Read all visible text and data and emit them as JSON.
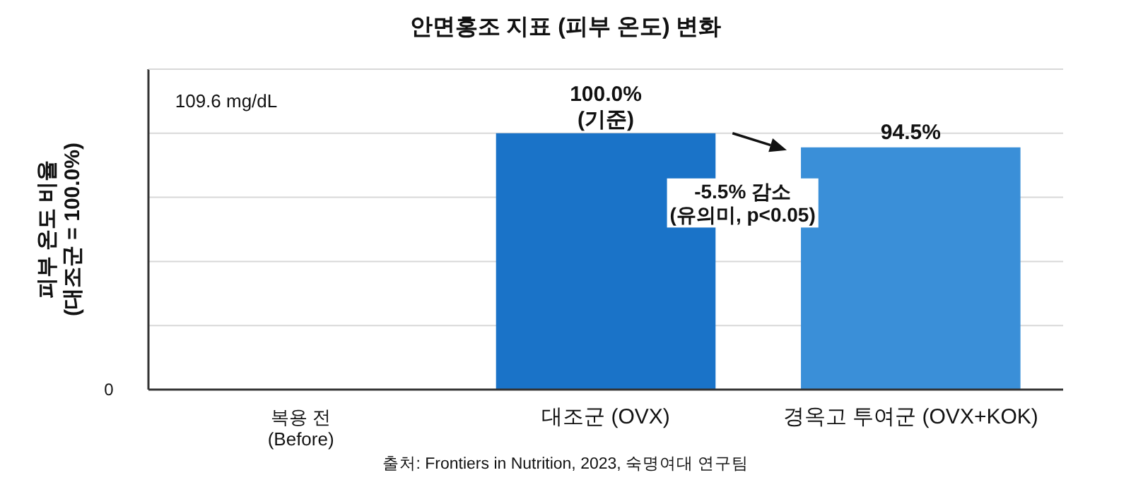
{
  "chart_data": {
    "type": "bar",
    "title": "안면홍조 지표 (피부 온도) 변화",
    "ylabel": "피부 온도 비율\n(대조군 = 100.0%)",
    "categories": [
      "복용 전\n(Before)",
      "대조군 (OVX)",
      "경옥고 투여군 (OVX+KOK)"
    ],
    "values": [
      null,
      100.0,
      94.5
    ],
    "colors": [
      null,
      "#1a73c8",
      "#3a8fd8"
    ],
    "value_labels": [
      null,
      "100.0%\n(기준)",
      "94.5%"
    ],
    "grid": "y",
    "annotations": [
      "109.6 mg/dL",
      "-5.5% 감소\n(유의미, p<0.05)",
      "출처: Frontiers in Nutrition, 2023, 숙명여대 연구팀",
      "0"
    ]
  }
}
